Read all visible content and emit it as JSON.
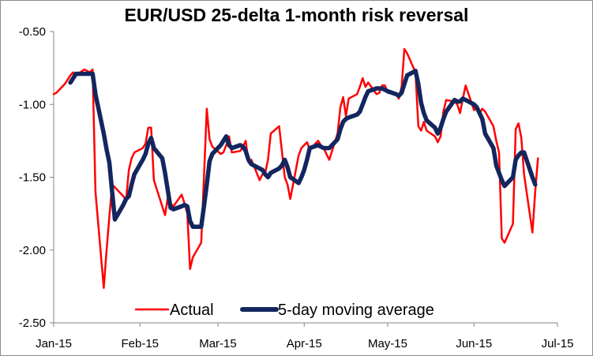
{
  "chart_data": {
    "type": "line",
    "title": "EUR/USD 25-delta 1-month risk reversal",
    "xlabel": "",
    "ylabel": "",
    "ylim": [
      -2.5,
      -0.5
    ],
    "yticks": [
      "-0.50",
      "-1.00",
      "-1.50",
      "-2.00",
      "-2.50"
    ],
    "ytick_values": [
      -0.5,
      -1.0,
      -1.5,
      -2.0,
      -2.5
    ],
    "xlim": [
      "2015-01-01",
      "2015-07-01"
    ],
    "xticks": [
      {
        "label": "Jan-15",
        "date": "2015-01-01"
      },
      {
        "label": "Feb-15",
        "date": "2015-02-01"
      },
      {
        "label": "Mar-15",
        "date": "2015-03-01"
      },
      {
        "label": "Apr-15",
        "date": "2015-04-01"
      },
      {
        "label": "May-15",
        "date": "2015-05-01"
      },
      {
        "label": "Jun-15",
        "date": "2015-06-01"
      },
      {
        "label": "Jul-15",
        "date": "2015-07-01"
      }
    ],
    "grid": false,
    "legend_position": "bottom",
    "series": [
      {
        "name": "Actual",
        "color": "#ff0000",
        "points": [
          [
            "2015-01-01",
            -0.93
          ],
          [
            "2015-01-02",
            -0.92
          ],
          [
            "2015-01-05",
            -0.86
          ],
          [
            "2015-01-06",
            -0.83
          ],
          [
            "2015-01-07",
            -0.8
          ],
          [
            "2015-01-08",
            -0.78
          ],
          [
            "2015-01-09",
            -0.8
          ],
          [
            "2015-01-12",
            -0.76
          ],
          [
            "2015-01-13",
            -0.77
          ],
          [
            "2015-01-14",
            -0.78
          ],
          [
            "2015-01-15",
            -0.76
          ],
          [
            "2015-01-16",
            -1.6
          ],
          [
            "2015-01-19",
            -2.26
          ],
          [
            "2015-01-20",
            -2.0
          ],
          [
            "2015-01-21",
            -1.77
          ],
          [
            "2015-01-22",
            -1.55
          ],
          [
            "2015-01-23",
            -1.57
          ],
          [
            "2015-01-26",
            -1.63
          ],
          [
            "2015-01-27",
            -1.66
          ],
          [
            "2015-01-28",
            -1.45
          ],
          [
            "2015-01-29",
            -1.37
          ],
          [
            "2015-01-30",
            -1.33
          ],
          [
            "2015-02-02",
            -1.3
          ],
          [
            "2015-02-03",
            -1.27
          ],
          [
            "2015-02-04",
            -1.16
          ],
          [
            "2015-02-05",
            -1.16
          ],
          [
            "2015-02-06",
            -1.52
          ],
          [
            "2015-02-09",
            -1.7
          ],
          [
            "2015-02-10",
            -1.76
          ],
          [
            "2015-02-11",
            -1.64
          ],
          [
            "2015-02-12",
            -1.68
          ],
          [
            "2015-02-13",
            -1.7
          ],
          [
            "2015-02-16",
            -1.62
          ],
          [
            "2015-02-17",
            -1.68
          ],
          [
            "2015-02-18",
            -1.75
          ],
          [
            "2015-02-19",
            -2.13
          ],
          [
            "2015-02-20",
            -2.05
          ],
          [
            "2015-02-23",
            -1.95
          ],
          [
            "2015-02-24",
            -1.5
          ],
          [
            "2015-02-25",
            -1.03
          ],
          [
            "2015-02-26",
            -1.24
          ],
          [
            "2015-02-27",
            -1.29
          ],
          [
            "2015-03-02",
            -1.34
          ],
          [
            "2015-03-03",
            -1.33
          ],
          [
            "2015-03-04",
            -1.28
          ],
          [
            "2015-03-05",
            -1.22
          ],
          [
            "2015-03-06",
            -1.33
          ],
          [
            "2015-03-09",
            -1.32
          ],
          [
            "2015-03-10",
            -1.29
          ],
          [
            "2015-03-11",
            -1.25
          ],
          [
            "2015-03-12",
            -1.4
          ],
          [
            "2015-03-13",
            -1.38
          ],
          [
            "2015-03-16",
            -1.52
          ],
          [
            "2015-03-17",
            -1.48
          ],
          [
            "2015-03-18",
            -1.47
          ],
          [
            "2015-03-19",
            -1.38
          ],
          [
            "2015-03-20",
            -1.2
          ],
          [
            "2015-03-23",
            -1.15
          ],
          [
            "2015-03-24",
            -1.32
          ],
          [
            "2015-03-25",
            -1.5
          ],
          [
            "2015-03-26",
            -1.55
          ],
          [
            "2015-03-27",
            -1.65
          ],
          [
            "2015-03-30",
            -1.35
          ],
          [
            "2015-03-31",
            -1.3
          ],
          [
            "2015-04-01",
            -1.28
          ],
          [
            "2015-04-02",
            -1.26
          ],
          [
            "2015-04-03",
            -1.31
          ],
          [
            "2015-04-06",
            -1.25
          ],
          [
            "2015-04-07",
            -1.28
          ],
          [
            "2015-04-08",
            -1.3
          ],
          [
            "2015-04-09",
            -1.34
          ],
          [
            "2015-04-10",
            -1.38
          ],
          [
            "2015-04-13",
            -1.2
          ],
          [
            "2015-04-14",
            -1.02
          ],
          [
            "2015-04-15",
            -0.95
          ],
          [
            "2015-04-16",
            -1.08
          ],
          [
            "2015-04-17",
            -0.96
          ],
          [
            "2015-04-20",
            -0.93
          ],
          [
            "2015-04-21",
            -0.88
          ],
          [
            "2015-04-22",
            -0.82
          ],
          [
            "2015-04-23",
            -0.88
          ],
          [
            "2015-04-24",
            -0.85
          ],
          [
            "2015-04-27",
            -0.93
          ],
          [
            "2015-04-28",
            -0.92
          ],
          [
            "2015-04-29",
            -0.87
          ],
          [
            "2015-04-30",
            -0.87
          ],
          [
            "2015-05-01",
            -0.92
          ],
          [
            "2015-05-04",
            -0.93
          ],
          [
            "2015-05-05",
            -0.96
          ],
          [
            "2015-05-06",
            -0.88
          ],
          [
            "2015-05-07",
            -0.62
          ],
          [
            "2015-05-08",
            -0.65
          ],
          [
            "2015-05-11",
            -0.78
          ],
          [
            "2015-05-12",
            -1.15
          ],
          [
            "2015-05-13",
            -1.18
          ],
          [
            "2015-05-14",
            -1.12
          ],
          [
            "2015-05-15",
            -1.18
          ],
          [
            "2015-05-18",
            -1.22
          ],
          [
            "2015-05-19",
            -1.26
          ],
          [
            "2015-05-20",
            -1.22
          ],
          [
            "2015-05-21",
            -1.05
          ],
          [
            "2015-05-22",
            -0.97
          ],
          [
            "2015-05-25",
            -0.98
          ],
          [
            "2015-05-26",
            -1.0
          ],
          [
            "2015-05-27",
            -1.06
          ],
          [
            "2015-05-28",
            -0.96
          ],
          [
            "2015-05-29",
            -0.87
          ],
          [
            "2015-06-01",
            -1.04
          ],
          [
            "2015-06-02",
            -1.02
          ],
          [
            "2015-06-03",
            -1.06
          ],
          [
            "2015-06-04",
            -1.03
          ],
          [
            "2015-06-05",
            -1.05
          ],
          [
            "2015-06-08",
            -1.15
          ],
          [
            "2015-06-09",
            -1.25
          ],
          [
            "2015-06-10",
            -1.33
          ],
          [
            "2015-06-11",
            -1.92
          ],
          [
            "2015-06-12",
            -1.95
          ],
          [
            "2015-06-15",
            -1.82
          ],
          [
            "2015-06-16",
            -1.17
          ],
          [
            "2015-06-17",
            -1.13
          ],
          [
            "2015-06-18",
            -1.23
          ],
          [
            "2015-06-19",
            -1.48
          ],
          [
            "2015-06-22",
            -1.88
          ],
          [
            "2015-06-23",
            -1.6
          ],
          [
            "2015-06-24",
            -1.37
          ]
        ]
      },
      {
        "name": "5-day moving average",
        "color": "#13265e",
        "points": [
          [
            "2015-01-07",
            -0.85
          ],
          [
            "2015-01-08",
            -0.82
          ],
          [
            "2015-01-09",
            -0.79
          ],
          [
            "2015-01-12",
            -0.79
          ],
          [
            "2015-01-13",
            -0.79
          ],
          [
            "2015-01-14",
            -0.79
          ],
          [
            "2015-01-15",
            -0.79
          ],
          [
            "2015-01-16",
            -0.93
          ],
          [
            "2015-01-19",
            -1.2
          ],
          [
            "2015-01-20",
            -1.31
          ],
          [
            "2015-01-21",
            -1.4
          ],
          [
            "2015-01-22",
            -1.6
          ],
          [
            "2015-01-23",
            -1.79
          ],
          [
            "2015-01-26",
            -1.69
          ],
          [
            "2015-01-27",
            -1.65
          ],
          [
            "2015-01-28",
            -1.63
          ],
          [
            "2015-01-29",
            -1.55
          ],
          [
            "2015-01-30",
            -1.48
          ],
          [
            "2015-02-02",
            -1.38
          ],
          [
            "2015-02-03",
            -1.34
          ],
          [
            "2015-02-04",
            -1.27
          ],
          [
            "2015-02-05",
            -1.23
          ],
          [
            "2015-02-06",
            -1.3
          ],
          [
            "2015-02-09",
            -1.37
          ],
          [
            "2015-02-10",
            -1.47
          ],
          [
            "2015-02-11",
            -1.59
          ],
          [
            "2015-02-12",
            -1.71
          ],
          [
            "2015-02-13",
            -1.72
          ],
          [
            "2015-02-16",
            -1.7
          ],
          [
            "2015-02-17",
            -1.69
          ],
          [
            "2015-02-18",
            -1.7
          ],
          [
            "2015-02-19",
            -1.8
          ],
          [
            "2015-02-20",
            -1.84
          ],
          [
            "2015-02-23",
            -1.84
          ],
          [
            "2015-02-24",
            -1.7
          ],
          [
            "2015-02-25",
            -1.55
          ],
          [
            "2015-02-26",
            -1.39
          ],
          [
            "2015-02-27",
            -1.34
          ],
          [
            "2015-03-02",
            -1.28
          ],
          [
            "2015-03-03",
            -1.25
          ],
          [
            "2015-03-04",
            -1.22
          ],
          [
            "2015-03-05",
            -1.28
          ],
          [
            "2015-03-06",
            -1.3
          ],
          [
            "2015-03-09",
            -1.28
          ],
          [
            "2015-03-10",
            -1.29
          ],
          [
            "2015-03-11",
            -1.32
          ],
          [
            "2015-03-12",
            -1.38
          ],
          [
            "2015-03-13",
            -1.41
          ],
          [
            "2015-03-16",
            -1.44
          ],
          [
            "2015-03-17",
            -1.45
          ],
          [
            "2015-03-18",
            -1.48
          ],
          [
            "2015-03-19",
            -1.5
          ],
          [
            "2015-03-20",
            -1.47
          ],
          [
            "2015-03-23",
            -1.44
          ],
          [
            "2015-03-24",
            -1.42
          ],
          [
            "2015-03-25",
            -1.38
          ],
          [
            "2015-03-26",
            -1.43
          ],
          [
            "2015-03-27",
            -1.5
          ],
          [
            "2015-03-30",
            -1.54
          ],
          [
            "2015-03-31",
            -1.5
          ],
          [
            "2015-04-01",
            -1.45
          ],
          [
            "2015-04-02",
            -1.38
          ],
          [
            "2015-04-03",
            -1.3
          ],
          [
            "2015-04-06",
            -1.28
          ],
          [
            "2015-04-07",
            -1.29
          ],
          [
            "2015-04-08",
            -1.3
          ],
          [
            "2015-04-09",
            -1.3
          ],
          [
            "2015-04-10",
            -1.3
          ],
          [
            "2015-04-13",
            -1.24
          ],
          [
            "2015-04-14",
            -1.17
          ],
          [
            "2015-04-15",
            -1.12
          ],
          [
            "2015-04-16",
            -1.1
          ],
          [
            "2015-04-17",
            -1.09
          ],
          [
            "2015-04-20",
            -1.07
          ],
          [
            "2015-04-21",
            -1.05
          ],
          [
            "2015-04-22",
            -1.0
          ],
          [
            "2015-04-23",
            -0.95
          ],
          [
            "2015-04-24",
            -0.91
          ],
          [
            "2015-04-27",
            -0.89
          ],
          [
            "2015-04-28",
            -0.89
          ],
          [
            "2015-04-29",
            -0.89
          ],
          [
            "2015-04-30",
            -0.9
          ],
          [
            "2015-05-01",
            -0.91
          ],
          [
            "2015-05-04",
            -0.93
          ],
          [
            "2015-05-05",
            -0.94
          ],
          [
            "2015-05-06",
            -0.92
          ],
          [
            "2015-05-07",
            -0.86
          ],
          [
            "2015-05-08",
            -0.8
          ],
          [
            "2015-05-11",
            -0.77
          ],
          [
            "2015-05-12",
            -0.86
          ],
          [
            "2015-05-13",
            -0.99
          ],
          [
            "2015-05-14",
            -1.06
          ],
          [
            "2015-05-15",
            -1.11
          ],
          [
            "2015-05-18",
            -1.16
          ],
          [
            "2015-05-19",
            -1.2
          ],
          [
            "2015-05-20",
            -1.16
          ],
          [
            "2015-05-21",
            -1.1
          ],
          [
            "2015-05-22",
            -1.05
          ],
          [
            "2015-05-25",
            -0.97
          ],
          [
            "2015-05-26",
            -0.98
          ],
          [
            "2015-05-27",
            -0.98
          ],
          [
            "2015-05-28",
            -0.96
          ],
          [
            "2015-05-29",
            -0.97
          ],
          [
            "2015-06-01",
            -1.0
          ],
          [
            "2015-06-02",
            -1.02
          ],
          [
            "2015-06-03",
            -1.06
          ],
          [
            "2015-06-04",
            -1.1
          ],
          [
            "2015-06-05",
            -1.2
          ],
          [
            "2015-06-08",
            -1.3
          ],
          [
            "2015-06-09",
            -1.42
          ],
          [
            "2015-06-10",
            -1.47
          ],
          [
            "2015-06-11",
            -1.52
          ],
          [
            "2015-06-12",
            -1.56
          ],
          [
            "2015-06-15",
            -1.5
          ],
          [
            "2015-06-16",
            -1.38
          ],
          [
            "2015-06-17",
            -1.35
          ],
          [
            "2015-06-18",
            -1.33
          ],
          [
            "2015-06-19",
            -1.33
          ],
          [
            "2015-06-22",
            -1.5
          ],
          [
            "2015-06-23",
            -1.55
          ]
        ]
      }
    ]
  }
}
